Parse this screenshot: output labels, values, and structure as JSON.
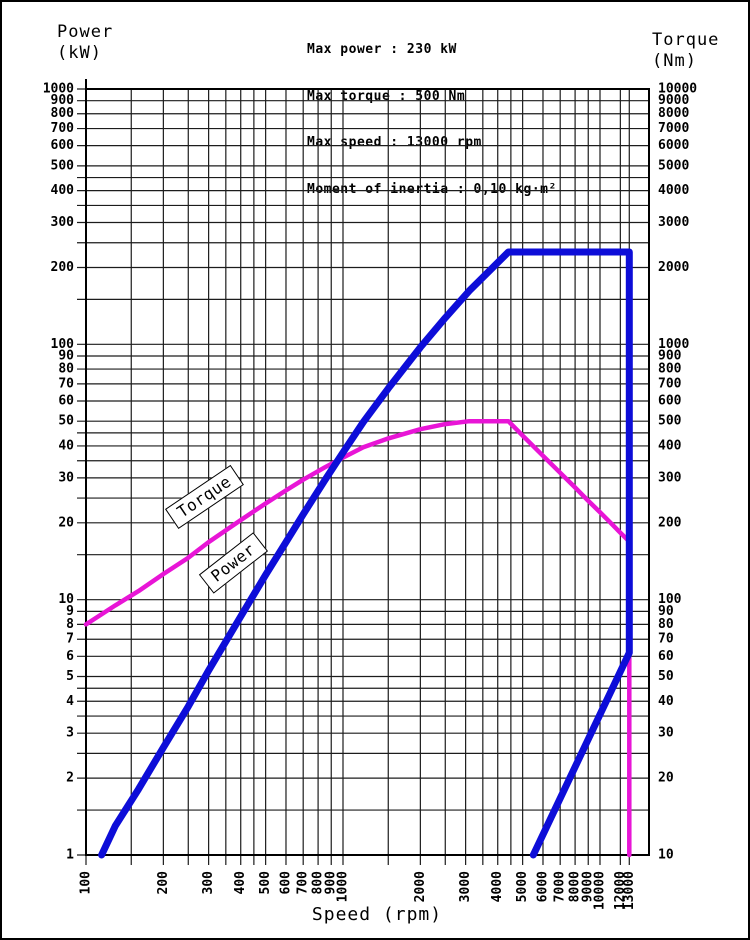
{
  "colors": {
    "power": "#0d0dd8",
    "torque": "#e815d6",
    "grid": "#1c1c1c",
    "frame": "#000000",
    "text": "#000000",
    "background": "#ffffff"
  },
  "chart_data": {
    "type": "line",
    "scale": "log-log",
    "info_lines": [
      "Max power : 230 kW",
      "Max torque : 500 Nm",
      "Max speed : 13000 rpm",
      "Moment of inertia : 0,10 kg·m²"
    ],
    "x_axis": {
      "title": "Speed (rpm)",
      "scale": "log",
      "min": 100,
      "max": 13000,
      "gridlines": [
        100,
        150,
        200,
        250,
        300,
        350,
        400,
        450,
        500,
        600,
        700,
        800,
        900,
        1000,
        1500,
        2000,
        2500,
        3000,
        3500,
        4000,
        4500,
        5000,
        6000,
        7000,
        8000,
        9000,
        10000,
        12000,
        13000
      ],
      "tick_labels": [
        100,
        200,
        300,
        400,
        500,
        600,
        700,
        800,
        900,
        1000,
        2000,
        3000,
        4000,
        5000,
        6000,
        7000,
        8000,
        9000,
        10000,
        12000,
        13000
      ]
    },
    "left_axis": {
      "title": "Power",
      "unit": "(kW)",
      "scale": "log",
      "min": 1,
      "max": 1000,
      "tick_labels": [
        1,
        2,
        3,
        4,
        5,
        6,
        7,
        8,
        9,
        10,
        20,
        30,
        40,
        50,
        60,
        70,
        80,
        90,
        100,
        200,
        300,
        400,
        500,
        600,
        700,
        800,
        900,
        1000
      ]
    },
    "right_axis": {
      "title": "Torque",
      "unit": "(Nm)",
      "scale": "log",
      "min": 10,
      "max": 10000,
      "ratio_to_left": 10,
      "tick_labels": [
        10,
        20,
        30,
        40,
        50,
        60,
        70,
        80,
        90,
        100,
        200,
        300,
        400,
        500,
        600,
        700,
        800,
        900,
        1000,
        2000,
        3000,
        4000,
        5000,
        6000,
        7000,
        8000,
        9000,
        10000
      ]
    },
    "y_gridlines_left": [
      1,
      1.5,
      2,
      2.5,
      3,
      3.5,
      4,
      4.5,
      5,
      6,
      7,
      8,
      9,
      10,
      15,
      20,
      25,
      30,
      35,
      40,
      45,
      50,
      60,
      70,
      80,
      90,
      100,
      150,
      200,
      250,
      300,
      350,
      400,
      450,
      500,
      600,
      700,
      800,
      900,
      1000
    ],
    "series": [
      {
        "name": "Torque",
        "label": "Torque",
        "axis": "right",
        "unit": "Nm",
        "color_key": "torque",
        "stroke_width": 4.5,
        "points": [
          [
            100,
            80
          ],
          [
            130,
            95
          ],
          [
            160,
            108
          ],
          [
            200,
            126
          ],
          [
            250,
            146
          ],
          [
            300,
            168
          ],
          [
            400,
            205
          ],
          [
            500,
            238
          ],
          [
            600,
            268
          ],
          [
            700,
            295
          ],
          [
            850,
            330
          ],
          [
            1000,
            360
          ],
          [
            1200,
            395
          ],
          [
            1500,
            428
          ],
          [
            2000,
            465
          ],
          [
            2500,
            487
          ],
          [
            3100,
            500
          ],
          [
            4400,
            500
          ],
          [
            5000,
            439
          ],
          [
            6000,
            366
          ],
          [
            7000,
            314
          ],
          [
            8000,
            275
          ],
          [
            9000,
            244
          ],
          [
            10000,
            220
          ],
          [
            11000,
            200
          ],
          [
            12000,
            183
          ],
          [
            13000,
            169
          ],
          [
            13000,
            10
          ]
        ]
      },
      {
        "name": "Power",
        "label": "Power",
        "axis": "left",
        "unit": "kW",
        "color_key": "power",
        "stroke_width": 7,
        "points": [
          [
            115,
            1.0
          ],
          [
            130,
            1.3
          ],
          [
            160,
            1.81
          ],
          [
            200,
            2.64
          ],
          [
            250,
            3.82
          ],
          [
            300,
            5.28
          ],
          [
            400,
            8.59
          ],
          [
            500,
            12.5
          ],
          [
            600,
            16.8
          ],
          [
            700,
            21.6
          ],
          [
            850,
            29.4
          ],
          [
            1000,
            37.7
          ],
          [
            1200,
            49.6
          ],
          [
            1500,
            67.2
          ],
          [
            2000,
            97.4
          ],
          [
            2500,
            127
          ],
          [
            3100,
            162
          ],
          [
            3600,
            188
          ],
          [
            4000,
            209
          ],
          [
            4400,
            230
          ],
          [
            13000,
            230
          ],
          [
            13000,
            6.2
          ],
          [
            5500,
            1.0
          ]
        ]
      }
    ]
  }
}
